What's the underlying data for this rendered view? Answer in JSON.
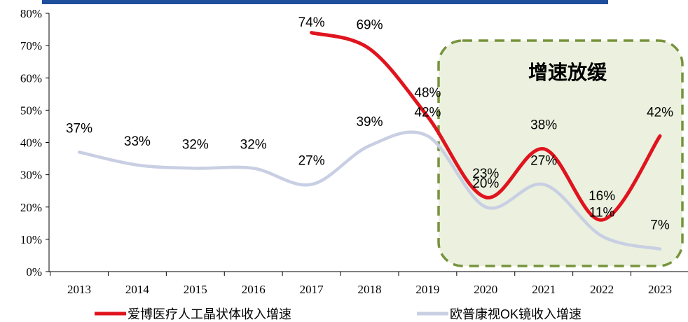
{
  "chart_data": {
    "type": "line",
    "categories": [
      "2013",
      "2014",
      "2015",
      "2016",
      "2017",
      "2018",
      "2019",
      "2020",
      "2021",
      "2022",
      "2023"
    ],
    "series": [
      {
        "name": "爱博医疗人工晶状体收入增速",
        "color": "#e0141e",
        "values": [
          null,
          null,
          null,
          null,
          74,
          69,
          48,
          23,
          38,
          16,
          42
        ],
        "value_labels": [
          null,
          null,
          null,
          null,
          "74%",
          "69%",
          "48%",
          "23%",
          "38%",
          "16%",
          "42%"
        ]
      },
      {
        "name": "欧普康视OK镜收入增速",
        "color": "#c9cfe3",
        "values": [
          37,
          33,
          32,
          32,
          27,
          39,
          42,
          20,
          27,
          11,
          7
        ],
        "value_labels": [
          "37%",
          "33%",
          "32%",
          "32%",
          "27%",
          "39%",
          "42%",
          "20%",
          "27%",
          "11%",
          "7%"
        ]
      }
    ],
    "ylim": [
      0,
      80
    ],
    "yticks": [
      {
        "value": 0,
        "label": "0%"
      },
      {
        "value": 10,
        "label": "10%"
      },
      {
        "value": 20,
        "label": "20%"
      },
      {
        "value": 30,
        "label": "30%"
      },
      {
        "value": 40,
        "label": "40%"
      },
      {
        "value": 50,
        "label": "50%"
      },
      {
        "value": 60,
        "label": "60%"
      },
      {
        "value": 70,
        "label": "70%"
      },
      {
        "value": 80,
        "label": "80%"
      }
    ],
    "annotation": "增速放缓",
    "legend": "bottom"
  }
}
